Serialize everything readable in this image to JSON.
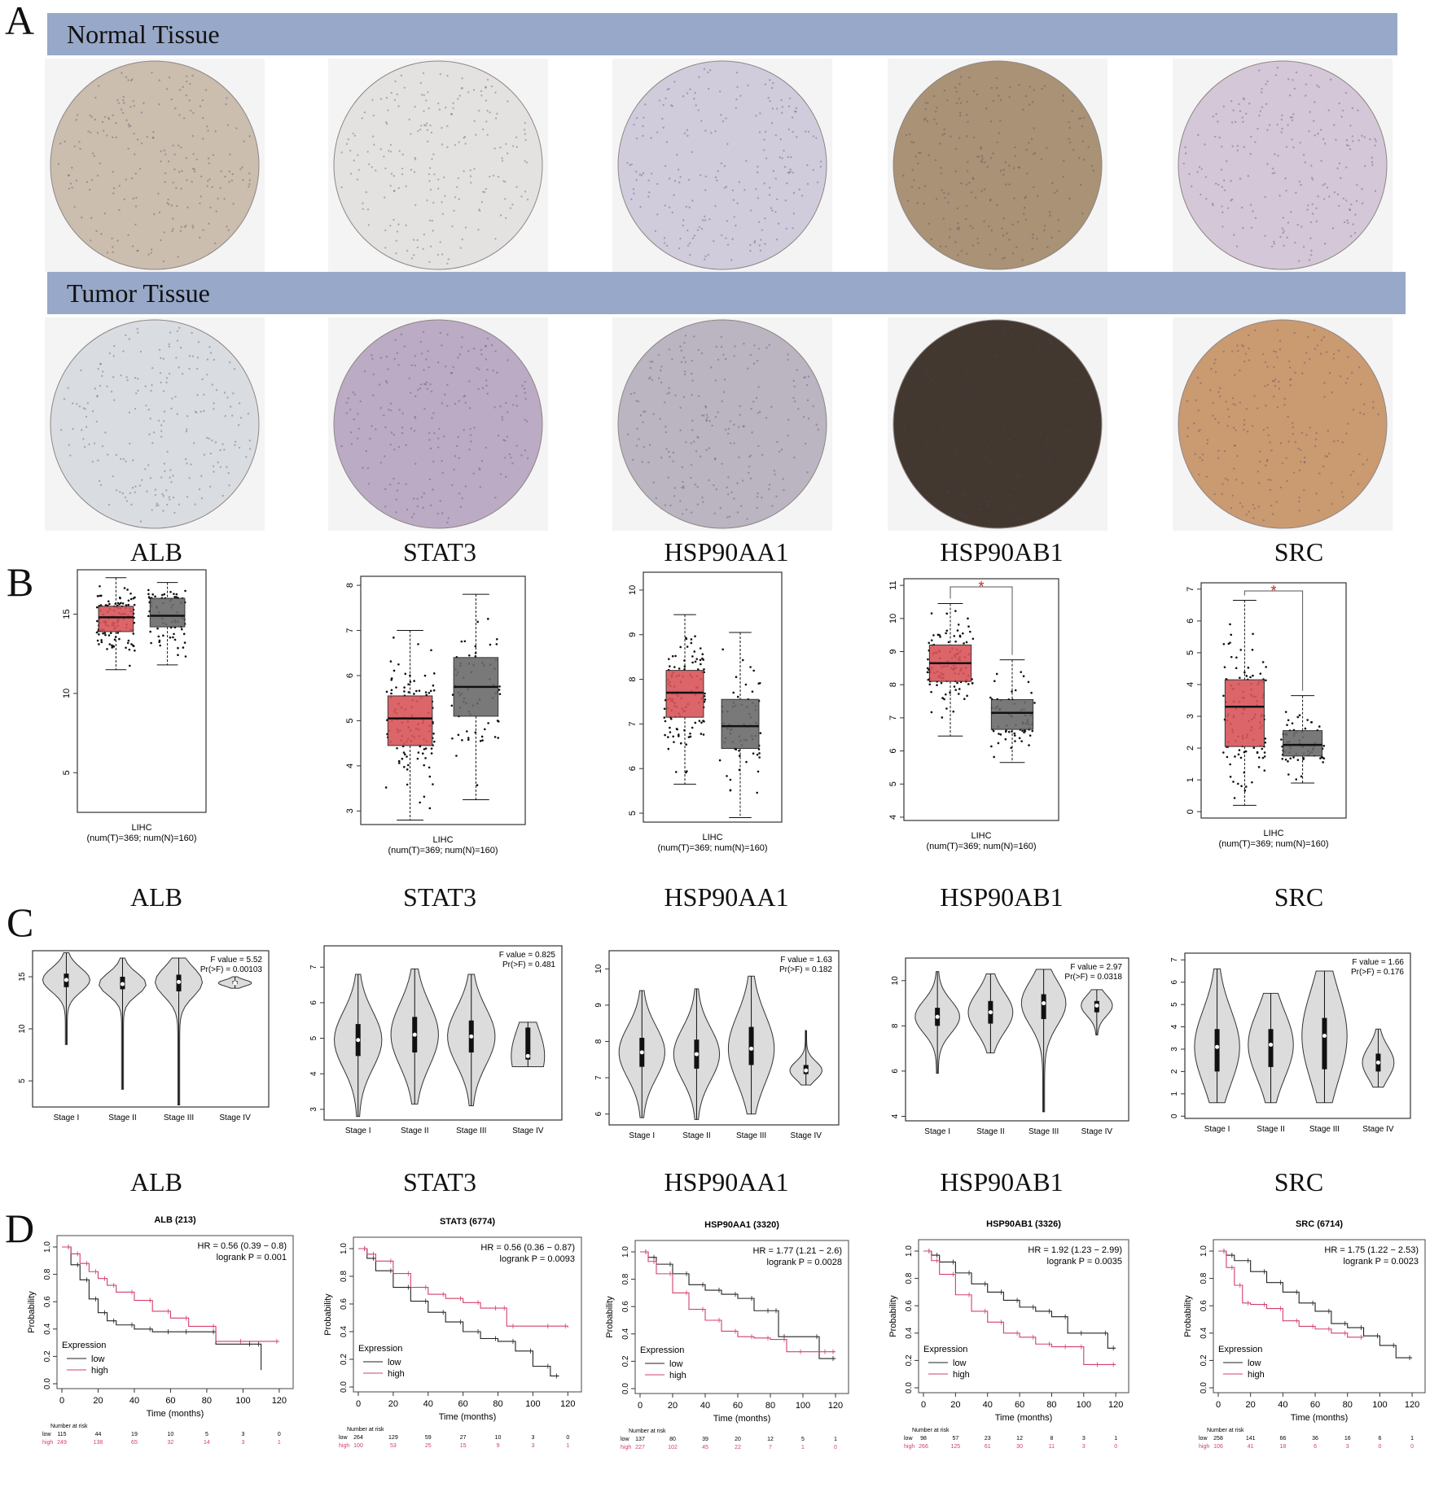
{
  "panel_labels": [
    "A",
    "B",
    "C",
    "D"
  ],
  "banners": {
    "normal": "Normal Tissue",
    "tumor": "Tumor Tissue"
  },
  "genes": [
    "ALB",
    "STAT3",
    "HSP90AA1",
    "HSP90AB1",
    "SRC"
  ],
  "tissue_colors": {
    "normal": [
      "#c9bcab",
      "#e4e2e0",
      "#cfcadb",
      "#a58d6f",
      "#d3c5d6"
    ],
    "tumor": [
      "#d8dce0",
      "#b9a8c2",
      "#b8b1bf",
      "#3a2e26",
      "#c8966a"
    ]
  },
  "chart_data": {
    "boxplots": [
      {
        "type": "box",
        "gene": "ALB",
        "xlabel": "LIHC",
        "xsub": "(num(T)=369; num(N)=160)",
        "ylim": [
          2.5,
          17.8
        ],
        "yticks": [
          5,
          10,
          15
        ],
        "tumor": {
          "q1": 13.9,
          "median": 14.8,
          "q3": 15.5,
          "min": 11.5,
          "max": 17.3
        },
        "normal": {
          "q1": 14.2,
          "median": 14.9,
          "q3": 16.0,
          "min": 11.8,
          "max": 17.0
        },
        "significant": false
      },
      {
        "type": "box",
        "gene": "STAT3",
        "xlabel": "LIHC",
        "xsub": "(num(T)=369; num(N)=160)",
        "ylim": [
          2.7,
          8.2
        ],
        "yticks": [
          3,
          4,
          5,
          6,
          7,
          8
        ],
        "tumor": {
          "q1": 4.45,
          "median": 5.05,
          "q3": 5.55,
          "min": 2.8,
          "max": 7.0
        },
        "normal": {
          "q1": 5.1,
          "median": 5.75,
          "q3": 6.4,
          "min": 3.25,
          "max": 7.8
        },
        "significant": false
      },
      {
        "type": "box",
        "gene": "HSP90AA1",
        "xlabel": "LIHC",
        "xsub": "(num(T)=369; num(N)=160)",
        "ylim": [
          4.8,
          10.4
        ],
        "yticks": [
          5,
          6,
          7,
          8,
          9,
          10
        ],
        "tumor": {
          "q1": 7.15,
          "median": 7.7,
          "q3": 8.2,
          "min": 5.65,
          "max": 9.45
        },
        "normal": {
          "q1": 6.45,
          "median": 6.95,
          "q3": 7.55,
          "min": 4.9,
          "max": 9.05
        },
        "significant": false
      },
      {
        "type": "box",
        "gene": "HSP90AB1",
        "xlabel": "LIHC",
        "xsub": "(num(T)=369; num(N)=160)",
        "ylim": [
          3.9,
          11.2
        ],
        "yticks": [
          4,
          5,
          6,
          7,
          8,
          9,
          10,
          11
        ],
        "tumor": {
          "q1": 8.1,
          "median": 8.65,
          "q3": 9.2,
          "min": 6.45,
          "max": 10.45
        },
        "normal": {
          "q1": 6.65,
          "median": 7.15,
          "q3": 7.55,
          "min": 5.65,
          "max": 8.75
        },
        "significant": true,
        "sig_label": "*"
      },
      {
        "type": "box",
        "gene": "SRC",
        "xlabel": "LIHC",
        "xsub": "(num(T)=369; num(N)=160)",
        "ylim": [
          -0.2,
          7.2
        ],
        "yticks": [
          0,
          1,
          2,
          3,
          4,
          5,
          6,
          7
        ],
        "tumor": {
          "q1": 2.05,
          "median": 3.3,
          "q3": 4.15,
          "min": 0.2,
          "max": 6.65
        },
        "normal": {
          "q1": 1.75,
          "median": 2.1,
          "q3": 2.55,
          "min": 0.9,
          "max": 3.65
        },
        "significant": true,
        "sig_label": "*"
      }
    ],
    "violins": [
      {
        "type": "violin",
        "gene": "ALB",
        "f_value": "F value = 5.52",
        "pr": "Pr(>F) = 0.00103",
        "ylim": [
          2.5,
          17.5
        ],
        "yticks": [
          5,
          10,
          15
        ],
        "stages": [
          {
            "name": "Stage I",
            "median": 14.7,
            "min": 8.5,
            "max": 17.3,
            "q1": 14.0,
            "q3": 15.3
          },
          {
            "name": "Stage II",
            "median": 14.3,
            "min": 4.2,
            "max": 16.8,
            "q1": 13.8,
            "q3": 15.0
          },
          {
            "name": "Stage III",
            "median": 14.5,
            "min": 2.7,
            "max": 16.8,
            "q1": 13.6,
            "q3": 15.2
          },
          {
            "name": "Stage IV",
            "median": 14.4,
            "min": 13.9,
            "max": 15.0,
            "q1": 14.3,
            "q3": 14.6
          }
        ]
      },
      {
        "type": "violin",
        "gene": "STAT3",
        "f_value": "F value = 0.825",
        "pr": "Pr(>F) = 0.481",
        "ylim": [
          2.7,
          7.6
        ],
        "yticks": [
          3,
          4,
          5,
          6,
          7
        ],
        "stages": [
          {
            "name": "Stage I",
            "median": 4.95,
            "min": 2.8,
            "max": 6.8,
            "q1": 4.5,
            "q3": 5.4
          },
          {
            "name": "Stage II",
            "median": 5.1,
            "min": 3.15,
            "max": 6.95,
            "q1": 4.6,
            "q3": 5.6
          },
          {
            "name": "Stage III",
            "median": 5.05,
            "min": 3.1,
            "max": 6.8,
            "q1": 4.6,
            "q3": 5.5
          },
          {
            "name": "Stage IV",
            "median": 4.5,
            "min": 4.2,
            "max": 5.45,
            "q1": 4.4,
            "q3": 5.3
          }
        ]
      },
      {
        "type": "violin",
        "gene": "HSP90AA1",
        "f_value": "F value = 1.63",
        "pr": "Pr(>F) = 0.182",
        "ylim": [
          5.7,
          10.5
        ],
        "yticks": [
          6,
          7,
          8,
          9,
          10
        ],
        "stages": [
          {
            "name": "Stage I",
            "median": 7.7,
            "min": 5.9,
            "max": 9.4,
            "q1": 7.3,
            "q3": 8.1
          },
          {
            "name": "Stage II",
            "median": 7.65,
            "min": 5.85,
            "max": 9.45,
            "q1": 7.25,
            "q3": 8.05
          },
          {
            "name": "Stage III",
            "median": 7.8,
            "min": 6.0,
            "max": 9.8,
            "q1": 7.35,
            "q3": 8.4
          },
          {
            "name": "Stage IV",
            "median": 7.2,
            "min": 6.8,
            "max": 8.3,
            "q1": 7.1,
            "q3": 7.35
          }
        ]
      },
      {
        "type": "violin",
        "gene": "HSP90AB1",
        "f_value": "F value = 2.97",
        "pr": "Pr(>F) = 0.0318",
        "ylim": [
          3.8,
          11.0
        ],
        "yticks": [
          4,
          6,
          8,
          10
        ],
        "stages": [
          {
            "name": "Stage I",
            "median": 8.4,
            "min": 5.9,
            "max": 10.4,
            "q1": 8.0,
            "q3": 8.8
          },
          {
            "name": "Stage II",
            "median": 8.6,
            "min": 6.8,
            "max": 10.3,
            "q1": 8.1,
            "q3": 9.1
          },
          {
            "name": "Stage III",
            "median": 9.0,
            "min": 4.2,
            "max": 10.5,
            "q1": 8.3,
            "q3": 9.4
          },
          {
            "name": "Stage IV",
            "median": 8.9,
            "min": 7.6,
            "max": 9.6,
            "q1": 8.6,
            "q3": 9.1
          }
        ]
      },
      {
        "type": "violin",
        "gene": "SRC",
        "f_value": "F value = 1.66",
        "pr": "Pr(>F) = 0.176",
        "ylim": [
          -0.1,
          7.3
        ],
        "yticks": [
          0,
          1,
          2,
          3,
          4,
          5,
          6,
          7
        ],
        "stages": [
          {
            "name": "Stage I",
            "median": 3.1,
            "min": 0.6,
            "max": 6.6,
            "q1": 2.0,
            "q3": 3.9
          },
          {
            "name": "Stage II",
            "median": 3.2,
            "min": 0.6,
            "max": 5.5,
            "q1": 2.2,
            "q3": 3.9
          },
          {
            "name": "Stage III",
            "median": 3.6,
            "min": 0.6,
            "max": 6.5,
            "q1": 2.1,
            "q3": 4.4
          },
          {
            "name": "Stage IV",
            "median": 2.4,
            "min": 1.3,
            "max": 3.9,
            "q1": 2.0,
            "q3": 2.8
          }
        ]
      }
    ],
    "survival": [
      {
        "type": "line",
        "title": "ALB (213)",
        "hr": "HR = 0.56 (0.39 − 0.8)",
        "logrank": "logrank P = 0.001",
        "low": {
          "x": [
            0,
            5,
            10,
            15,
            20,
            25,
            30,
            40,
            50,
            60,
            70,
            85,
            105,
            110
          ],
          "y": [
            1.0,
            0.87,
            0.76,
            0.62,
            0.52,
            0.46,
            0.43,
            0.4,
            0.38,
            0.38,
            0.38,
            0.29,
            0.29,
            0.1
          ]
        },
        "high": {
          "x": [
            0,
            5,
            10,
            15,
            20,
            25,
            30,
            40,
            50,
            60,
            70,
            85,
            100,
            120
          ],
          "y": [
            1.0,
            0.95,
            0.88,
            0.82,
            0.77,
            0.72,
            0.67,
            0.61,
            0.53,
            0.48,
            0.42,
            0.31,
            0.31,
            0.31
          ]
        },
        "risk": {
          "times": [
            "0",
            "20",
            "40",
            "60",
            "80",
            "100",
            "120"
          ],
          "low": [
            "115",
            "44",
            "19",
            "10",
            "5",
            "3",
            "0"
          ],
          "high": [
            "249",
            "138",
            "65",
            "32",
            "14",
            "3",
            "1"
          ]
        }
      },
      {
        "type": "line",
        "title": "STAT3 (6774)",
        "hr": "HR = 0.56 (0.36 − 0.87)",
        "logrank": "logrank P = 0.0093",
        "low": {
          "x": [
            0,
            5,
            10,
            20,
            30,
            40,
            50,
            60,
            70,
            80,
            90,
            100,
            110,
            115
          ],
          "y": [
            1.0,
            0.93,
            0.84,
            0.72,
            0.62,
            0.54,
            0.47,
            0.4,
            0.35,
            0.33,
            0.26,
            0.15,
            0.08,
            0.08
          ]
        },
        "high": {
          "x": [
            0,
            5,
            10,
            20,
            30,
            40,
            50,
            60,
            70,
            80,
            85,
            90,
            110,
            120
          ],
          "y": [
            1.0,
            0.96,
            0.91,
            0.82,
            0.72,
            0.67,
            0.64,
            0.61,
            0.57,
            0.57,
            0.44,
            0.44,
            0.44,
            0.43
          ]
        },
        "risk": {
          "times": [
            "0",
            "20",
            "40",
            "60",
            "80",
            "100",
            "120"
          ],
          "low": [
            "264",
            "129",
            "59",
            "27",
            "10",
            "3",
            "0"
          ],
          "high": [
            "100",
            "53",
            "25",
            "15",
            "9",
            "3",
            "1"
          ]
        }
      },
      {
        "type": "line",
        "title": "HSP90AA1 (3320)",
        "hr": "HR = 1.77 (1.21 − 2.6)",
        "logrank": "logrank P = 0.0028",
        "low": {
          "x": [
            0,
            5,
            10,
            20,
            30,
            40,
            50,
            60,
            70,
            80,
            85,
            90,
            110,
            120
          ],
          "y": [
            1.0,
            0.96,
            0.91,
            0.84,
            0.76,
            0.72,
            0.69,
            0.66,
            0.57,
            0.57,
            0.38,
            0.38,
            0.22,
            0.22
          ]
        },
        "high": {
          "x": [
            0,
            5,
            10,
            20,
            30,
            40,
            50,
            60,
            70,
            80,
            90,
            100,
            115,
            120
          ],
          "y": [
            1.0,
            0.93,
            0.84,
            0.7,
            0.58,
            0.5,
            0.42,
            0.38,
            0.37,
            0.36,
            0.27,
            0.27,
            0.27,
            0.27
          ]
        },
        "risk": {
          "times": [
            "0",
            "20",
            "40",
            "60",
            "80",
            "100",
            "120"
          ],
          "low": [
            "137",
            "80",
            "39",
            "20",
            "12",
            "5",
            "1"
          ],
          "high": [
            "227",
            "102",
            "45",
            "22",
            "7",
            "1",
            "0"
          ]
        }
      },
      {
        "type": "line",
        "title": "HSP90AB1 (3326)",
        "hr": "HR = 1.92 (1.23 − 2.99)",
        "logrank": "logrank P = 0.0035",
        "low": {
          "x": [
            0,
            5,
            10,
            20,
            30,
            40,
            50,
            60,
            70,
            80,
            90,
            100,
            115,
            120
          ],
          "y": [
            1.0,
            0.97,
            0.92,
            0.84,
            0.76,
            0.7,
            0.64,
            0.59,
            0.56,
            0.52,
            0.4,
            0.4,
            0.29,
            0.29
          ]
        },
        "high": {
          "x": [
            0,
            5,
            10,
            20,
            30,
            40,
            50,
            60,
            70,
            80,
            90,
            100,
            110,
            120
          ],
          "y": [
            1.0,
            0.93,
            0.83,
            0.68,
            0.56,
            0.48,
            0.4,
            0.37,
            0.32,
            0.3,
            0.3,
            0.17,
            0.17,
            0.17
          ]
        },
        "risk": {
          "times": [
            "0",
            "20",
            "40",
            "60",
            "80",
            "100",
            "120"
          ],
          "low": [
            "98",
            "57",
            "23",
            "12",
            "8",
            "3",
            "1"
          ],
          "high": [
            "266",
            "125",
            "61",
            "30",
            "11",
            "3",
            "0"
          ]
        }
      },
      {
        "type": "line",
        "title": "SRC (6714)",
        "hr": "HR = 1.75 (1.22 − 2.53)",
        "logrank": "logrank P = 0.0023",
        "low": {
          "x": [
            0,
            5,
            10,
            20,
            30,
            40,
            50,
            60,
            70,
            80,
            90,
            100,
            110,
            120
          ],
          "y": [
            1.0,
            0.97,
            0.93,
            0.85,
            0.77,
            0.7,
            0.62,
            0.56,
            0.47,
            0.44,
            0.38,
            0.31,
            0.22,
            0.22
          ]
        },
        "high": {
          "x": [
            0,
            5,
            10,
            15,
            20,
            30,
            40,
            50,
            60,
            70,
            80,
            90
          ],
          "y": [
            1.0,
            0.88,
            0.75,
            0.62,
            0.61,
            0.58,
            0.49,
            0.45,
            0.43,
            0.4,
            0.37,
            0.37
          ]
        },
        "risk": {
          "times": [
            "0",
            "20",
            "40",
            "60",
            "80",
            "100",
            "120"
          ],
          "low": [
            "258",
            "141",
            "66",
            "36",
            "16",
            "6",
            "1"
          ],
          "high": [
            "106",
            "41",
            "18",
            "6",
            "3",
            "0",
            "0"
          ]
        }
      }
    ],
    "survival_axes": {
      "xlabel": "Time (months)",
      "ylabel": "Probability",
      "xticks": [
        0,
        20,
        40,
        60,
        80,
        100,
        120
      ],
      "yticks": [
        "0.0",
        "0.2",
        "0.4",
        "0.6",
        "0.8",
        "1.0"
      ],
      "legend_title": "Expression",
      "legend_low": "low",
      "legend_high": "high",
      "risk_title": "Number at risk",
      "risk_low": "low",
      "risk_high": "high"
    }
  }
}
